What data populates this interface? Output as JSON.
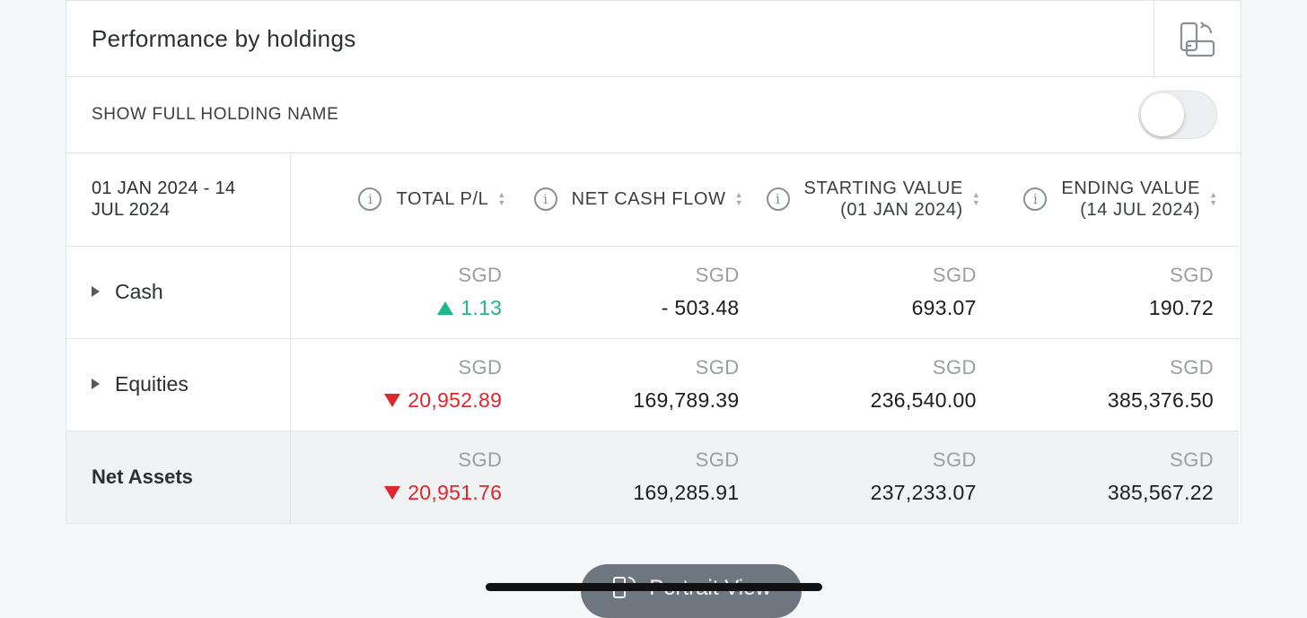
{
  "header": {
    "title": "Performance by holdings",
    "rotate_icon": "rotate-device-icon"
  },
  "toggle": {
    "label": "SHOW FULL HOLDING NAME",
    "on": false
  },
  "table": {
    "period": "01 JAN 2024 - 14 JUL 2024",
    "columns": [
      {
        "label": "TOTAL P/L",
        "sub": ""
      },
      {
        "label": "NET CASH FLOW",
        "sub": ""
      },
      {
        "label": "STARTING VALUE",
        "sub": "(01 JAN 2024)"
      },
      {
        "label": "ENDING VALUE",
        "sub": "(14 JUL 2024)"
      }
    ],
    "rows": [
      {
        "name": "Cash",
        "currency": "SGD",
        "pl": "1.13",
        "pl_dir": "up",
        "net_cash_flow": "- 503.48",
        "starting": "693.07",
        "ending": "190.72"
      },
      {
        "name": "Equities",
        "currency": "SGD",
        "pl": "20,952.89",
        "pl_dir": "down",
        "net_cash_flow": "169,789.39",
        "starting": "236,540.00",
        "ending": "385,376.50"
      },
      {
        "name": "Net Assets",
        "currency": "SGD",
        "pl": "20,951.76",
        "pl_dir": "down",
        "net_cash_flow": "169,285.91",
        "starting": "237,233.07",
        "ending": "385,567.22"
      }
    ]
  },
  "footer": {
    "portrait_label": "Portrait View"
  },
  "colors": {
    "positive": "#1fb88a",
    "negative": "#e0262b",
    "accent": "#6e7780"
  }
}
